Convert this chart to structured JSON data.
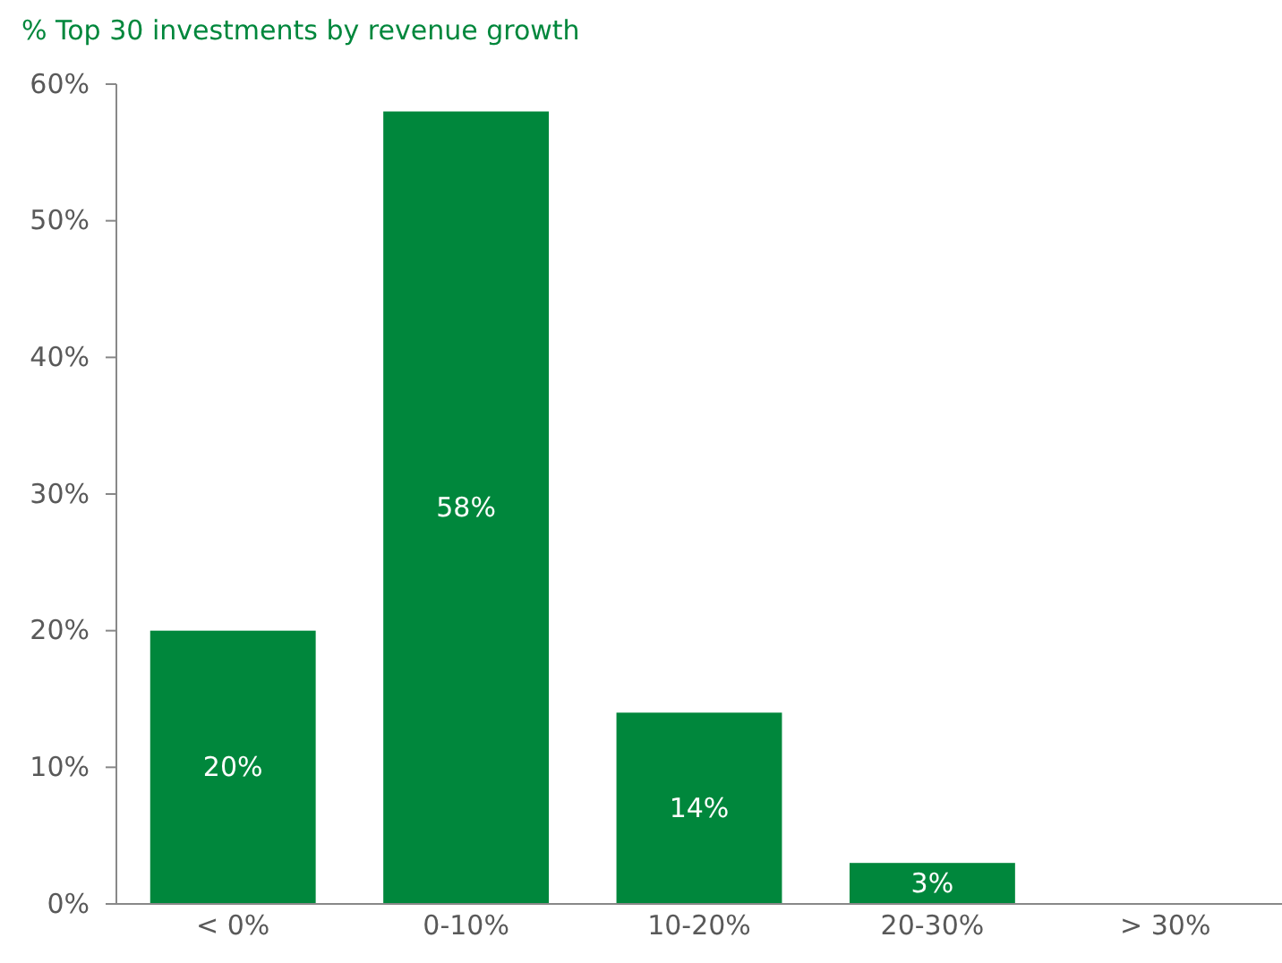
{
  "chart_data": {
    "type": "bar",
    "title": "% Top 30 investments by revenue growth",
    "categories": [
      "< 0%",
      "0-10%",
      "10-20%",
      "20-30%",
      "> 30%"
    ],
    "values": [
      20,
      58,
      14,
      3,
      0
    ],
    "value_labels": [
      "20%",
      "58%",
      "14%",
      "3%",
      null
    ],
    "color": "#00873c",
    "ylim": [
      0,
      60
    ],
    "yticks": [
      {
        "value": 0,
        "label": "0%"
      },
      {
        "value": 10,
        "label": "10%"
      },
      {
        "value": 20,
        "label": "20%"
      },
      {
        "value": 30,
        "label": "30%"
      },
      {
        "value": 40,
        "label": "40%"
      },
      {
        "value": 50,
        "label": "50%"
      },
      {
        "value": 60,
        "label": "60%"
      }
    ],
    "grid": false
  }
}
